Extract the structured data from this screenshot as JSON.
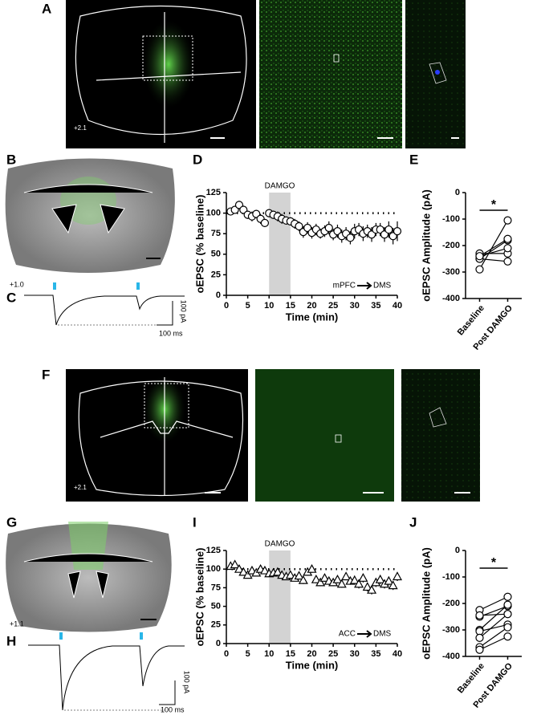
{
  "panel_labels": [
    "A",
    "B",
    "C",
    "D",
    "E",
    "F",
    "G",
    "H",
    "I",
    "J"
  ],
  "image_labels": {
    "a_bregma": "+2.1",
    "b_bregma": "+1.0",
    "c_scale_y": "100 pA",
    "c_scale_x": "100 ms",
    "f_bregma": "+2.1",
    "g_bregma": "+1.1",
    "h_scale_y": "100 pA",
    "h_scale_x": "100 ms"
  },
  "chart_data": [
    {
      "type": "scatter",
      "marker": "circle",
      "ylabel": "oEPSC (% baseline)",
      "xlabel": "Time (min)",
      "shade_label": "DAMGO",
      "shade": [
        10,
        15
      ],
      "reference_line": 100,
      "pathway": [
        "mPFC",
        "DMS"
      ],
      "x": [
        1,
        2,
        3,
        4,
        5,
        6,
        7,
        8,
        9,
        10,
        11,
        12,
        13,
        14,
        15,
        16,
        17,
        18,
        19,
        20,
        21,
        22,
        23,
        24,
        25,
        26,
        27,
        28,
        29,
        30,
        31,
        32,
        33,
        34,
        35,
        36,
        37,
        38,
        39,
        40
      ],
      "values": [
        102,
        104,
        110,
        104,
        98,
        96,
        99,
        93,
        88,
        100,
        98,
        96,
        93,
        91,
        90,
        87,
        84,
        77,
        82,
        76,
        80,
        75,
        78,
        82,
        74,
        78,
        72,
        75,
        70,
        78,
        80,
        75,
        78,
        74,
        80,
        80,
        74,
        80,
        72,
        78
      ],
      "errors": [
        4,
        4,
        5,
        5,
        5,
        6,
        5,
        6,
        5,
        5,
        5,
        6,
        6,
        5,
        5,
        6,
        6,
        7,
        7,
        7,
        7,
        6,
        7,
        8,
        7,
        8,
        8,
        8,
        8,
        9,
        8,
        9,
        8,
        9,
        8,
        8,
        9,
        10,
        10,
        12
      ],
      "xlim": [
        0,
        40
      ],
      "ylim": [
        0,
        125
      ],
      "xticks": [
        0,
        5,
        10,
        15,
        20,
        25,
        30,
        35,
        40
      ],
      "yticks": [
        0,
        25,
        50,
        75,
        100,
        125
      ]
    },
    {
      "type": "paired",
      "ylabel": "oEPSC Amplitude (pA)",
      "categories": [
        "Baseline",
        "Post DAMGO"
      ],
      "significance": "*",
      "values": [
        [
          -290,
          -250,
          -240,
          -230,
          -250,
          -240
        ],
        [
          -105,
          -180,
          -175,
          -230,
          -260,
          -210
        ]
      ],
      "ylim": [
        -400,
        0
      ],
      "yticks": [
        0,
        -100,
        -200,
        -300,
        -400
      ]
    },
    {
      "type": "scatter",
      "marker": "triangle",
      "ylabel": "oEPSC (% baseline)",
      "xlabel": "Time (min)",
      "shade_label": "DAMGO",
      "shade": [
        10,
        15
      ],
      "reference_line": 100,
      "pathway": [
        "ACC",
        "DMS"
      ],
      "x": [
        1,
        2,
        3,
        4,
        5,
        6,
        7,
        8,
        9,
        10,
        11,
        12,
        13,
        14,
        15,
        16,
        17,
        18,
        19,
        20,
        21,
        22,
        23,
        24,
        25,
        26,
        27,
        28,
        29,
        30,
        31,
        32,
        33,
        34,
        35,
        36,
        37,
        38,
        39,
        40
      ],
      "values": [
        104,
        106,
        100,
        96,
        92,
        98,
        95,
        100,
        98,
        94,
        95,
        96,
        92,
        90,
        92,
        88,
        91,
        85,
        96,
        100,
        86,
        82,
        88,
        84,
        82,
        86,
        80,
        90,
        84,
        85,
        80,
        88,
        76,
        72,
        82,
        86,
        80,
        84,
        78,
        90
      ],
      "errors": [
        3,
        4,
        4,
        4,
        4,
        4,
        4,
        4,
        4,
        4,
        4,
        4,
        4,
        4,
        4,
        4,
        5,
        5,
        5,
        5,
        5,
        5,
        5,
        5,
        5,
        5,
        5,
        5,
        5,
        6,
        6,
        6,
        6,
        6,
        6,
        6,
        6,
        6,
        6,
        6
      ],
      "xlim": [
        0,
        40
      ],
      "ylim": [
        0,
        125
      ],
      "xticks": [
        0,
        5,
        10,
        15,
        20,
        25,
        30,
        35,
        40
      ],
      "yticks": [
        0,
        25,
        50,
        75,
        100,
        125
      ]
    },
    {
      "type": "paired",
      "ylabel": "oEPSC Amplitude (pA)",
      "categories": [
        "Baseline",
        "Post DAMGO"
      ],
      "significance": "*",
      "values": [
        [
          -225,
          -250,
          -245,
          -300,
          -305,
          -330,
          -365,
          -375
        ],
        [
          -175,
          -210,
          -240,
          -205,
          -280,
          -240,
          -290,
          -325
        ]
      ],
      "ylim": [
        -400,
        0
      ],
      "yticks": [
        0,
        -100,
        -200,
        -300,
        -400
      ]
    }
  ]
}
